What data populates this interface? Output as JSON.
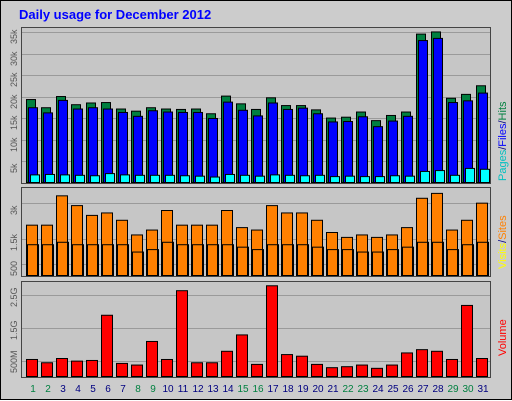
{
  "title": "Daily usage for December 2012",
  "side_labels": {
    "hits": [
      {
        "text": "Pages",
        "color": "#00c0c0"
      },
      {
        "text": "/",
        "color": "#000080"
      },
      {
        "text": "Files",
        "color": "#0000ff"
      },
      {
        "text": "/",
        "color": "#000080"
      },
      {
        "text": "Hits",
        "color": "#008040"
      }
    ],
    "visits": [
      {
        "text": "Visits",
        "color": "#ffff00"
      },
      {
        "text": "/",
        "color": "#000080"
      },
      {
        "text": "Sites",
        "color": "#ff8000"
      }
    ],
    "volume": [
      {
        "text": "Volume",
        "color": "#ff0000"
      }
    ]
  },
  "colors": {
    "hits": "#008040",
    "files": "#0000ff",
    "pages": "#00ffff",
    "visits": "#ffff00",
    "sites": "#ff8000",
    "volume": "#ff0000",
    "weekday_label": "#000080",
    "weekend_label": "#008040"
  },
  "chart_data": {
    "type": "bar",
    "categories": [
      "1",
      "2",
      "3",
      "4",
      "5",
      "6",
      "7",
      "8",
      "9",
      "10",
      "11",
      "12",
      "13",
      "14",
      "15",
      "16",
      "17",
      "18",
      "19",
      "20",
      "21",
      "22",
      "23",
      "24",
      "25",
      "26",
      "27",
      "28",
      "29",
      "30",
      "31"
    ],
    "weekend_days": [
      "1",
      "2",
      "8",
      "9",
      "15",
      "16",
      "22",
      "23",
      "29",
      "30"
    ],
    "panels": [
      {
        "name": "hits",
        "ylim": [
          0,
          36000
        ],
        "yticks": [
          "5k",
          "10k",
          "15k",
          "20k",
          "25k",
          "30k",
          "35k"
        ],
        "ytick_values": [
          5000,
          10000,
          15000,
          20000,
          25000,
          30000,
          35000
        ],
        "series": [
          {
            "name": "Hits",
            "values": [
              19500,
              17600,
              20200,
              18300,
              18700,
              18800,
              17300,
              16800,
              17600,
              17300,
              17200,
              17300,
              16200,
              20300,
              18500,
              17200,
              19900,
              18100,
              18100,
              17100,
              15200,
              15400,
              16600,
              14600,
              15800,
              16600,
              34700,
              35200,
              19800,
              20700,
              22700
            ]
          },
          {
            "name": "Files",
            "values": [
              17600,
              16400,
              19300,
              17300,
              17600,
              17300,
              16500,
              15600,
              16900,
              16600,
              16500,
              16500,
              15100,
              18900,
              17000,
              15700,
              18700,
              17200,
              17500,
              16200,
              14300,
              14400,
              15500,
              13200,
              14500,
              15600,
              33200,
              33700,
              18800,
              19200,
              21000
            ]
          },
          {
            "name": "Pages",
            "values": [
              2000,
              2100,
              2000,
              1900,
              1800,
              2300,
              2000,
              1900,
              1900,
              1900,
              1800,
              1700,
              1500,
              2100,
              1900,
              1700,
              2000,
              1900,
              1800,
              1900,
              1600,
              1700,
              1600,
              1600,
              1800,
              1700,
              2800,
              3000,
              1900,
              3500,
              3300
            ]
          }
        ]
      },
      {
        "name": "visits",
        "ylim": [
          0,
          3600
        ],
        "yticks": [
          "500",
          "1.5k",
          "3k"
        ],
        "ytick_values": [
          500,
          1500,
          3000
        ],
        "series": [
          {
            "name": "Sites",
            "values": [
              2100,
              2100,
              3300,
              2900,
              2500,
              2600,
              2300,
              1700,
              1900,
              2700,
              2100,
              2100,
              2100,
              2700,
              2000,
              1900,
              2900,
              2600,
              2600,
              2300,
              1800,
              1600,
              1700,
              1600,
              1700,
              2000,
              3200,
              3400,
              1900,
              2300,
              3000
            ]
          },
          {
            "name": "Visits",
            "values": [
              1300,
              1300,
              1400,
              1300,
              1300,
              1300,
              1300,
              1000,
              1100,
              1400,
              1300,
              1300,
              1300,
              1300,
              1200,
              1100,
              1300,
              1300,
              1300,
              1200,
              1100,
              1100,
              1000,
              1000,
              1100,
              1200,
              1400,
              1400,
              1100,
              1300,
              1400
            ]
          }
        ]
      },
      {
        "name": "volume",
        "ylim": [
          0,
          2.9
        ],
        "yticks": [
          "500M",
          "1.5G",
          "2.5G"
        ],
        "ytick_values": [
          0.5,
          1.5,
          2.5
        ],
        "series": [
          {
            "name": "Volume",
            "values": [
              0.55,
              0.45,
              0.58,
              0.5,
              0.52,
              1.9,
              0.43,
              0.38,
              1.1,
              0.55,
              2.65,
              0.45,
              0.45,
              0.8,
              1.3,
              0.4,
              2.8,
              0.7,
              0.65,
              0.4,
              0.3,
              0.33,
              0.38,
              0.28,
              0.38,
              0.75,
              0.85,
              0.8,
              0.55,
              2.2,
              0.58
            ]
          }
        ]
      }
    ]
  }
}
